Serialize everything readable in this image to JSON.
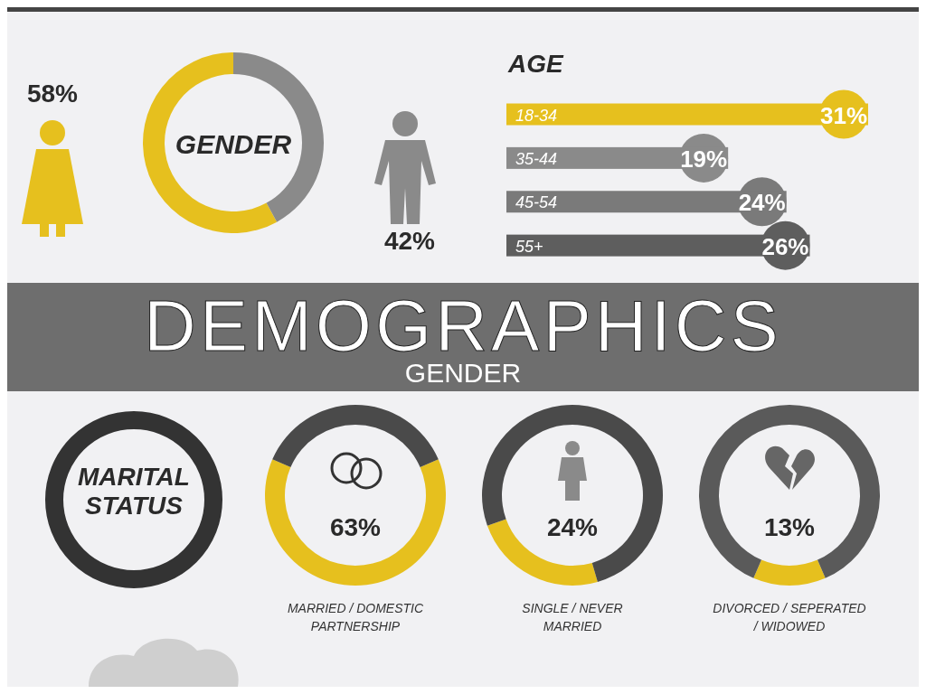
{
  "chart_data": [
    {
      "type": "donut",
      "title": "GENDER",
      "categories": [
        null,
        null
      ],
      "values": [
        58,
        42
      ],
      "colors": [
        "#e6c01e",
        "#8a8a8a"
      ],
      "value_labels": [
        "58%",
        "42%"
      ]
    },
    {
      "type": "bar",
      "orientation": "horizontal",
      "title": "AGE",
      "categories": [
        "18-34",
        "35-44",
        "45-54",
        "55+"
      ],
      "values": [
        31,
        19,
        24,
        26
      ],
      "colors": [
        "#e6c01e",
        "#8a8a8a",
        "#7a7a7a",
        "#5e5e5e"
      ],
      "value_labels": [
        "31%",
        "19%",
        "24%",
        "26%"
      ],
      "tick_labels": "y"
    },
    {
      "type": "other",
      "title": "MARITAL STATUS"
    },
    {
      "type": "donut",
      "categories": [
        "MARRIED / DOMESTIC PARTNERSHIP",
        null
      ],
      "values": [
        63,
        37
      ],
      "colors": [
        "#e6c01e",
        "#4a4a4a"
      ],
      "value_labels": [
        "63%",
        null
      ]
    },
    {
      "type": "donut",
      "categories": [
        "SINGLE / NEVER MARRIED",
        null
      ],
      "values": [
        24,
        76
      ],
      "colors": [
        "#e6c01e",
        "#4a4a4a"
      ],
      "value_labels": [
        "24%",
        null
      ]
    },
    {
      "type": "donut",
      "categories": [
        "DIVORCED / SEPERATED / WIDOWED",
        null
      ],
      "values": [
        13,
        87
      ],
      "colors": [
        "#e6c01e",
        "#5a5a5a"
      ],
      "value_labels": [
        "13%",
        null
      ]
    },
    {
      "type": "other",
      "title": "DEMOGRAPHICS",
      "subtitle": "GENDER"
    }
  ]
}
